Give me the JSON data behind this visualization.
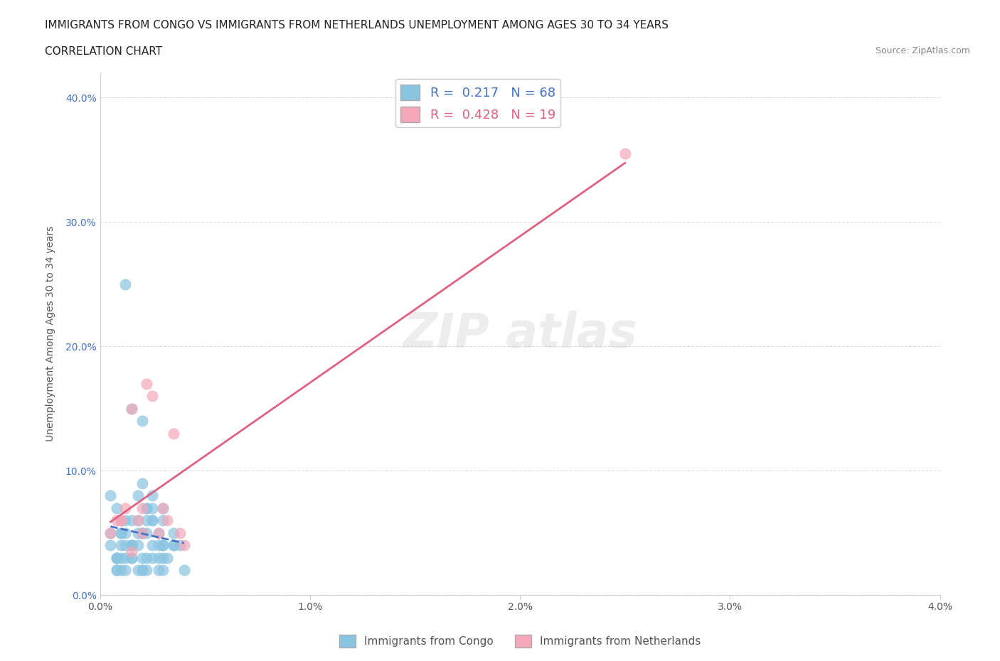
{
  "title_line1": "IMMIGRANTS FROM CONGO VS IMMIGRANTS FROM NETHERLANDS UNEMPLOYMENT AMONG AGES 30 TO 34 YEARS",
  "title_line2": "CORRELATION CHART",
  "source_text": "Source: ZipAtlas.com",
  "xlabel": "",
  "ylabel": "Unemployment Among Ages 30 to 34 years",
  "xlim": [
    0.0,
    0.04
  ],
  "ylim": [
    0.0,
    0.42
  ],
  "yticks": [
    0.0,
    0.1,
    0.2,
    0.3,
    0.4
  ],
  "ytick_labels": [
    "0.0%",
    "10.0%",
    "20.0%",
    "30.0%",
    "40.0%"
  ],
  "xticks": [
    0.0,
    0.01,
    0.02,
    0.03,
    0.04
  ],
  "xtick_labels": [
    "0.0%",
    "1.0%",
    "2.0%",
    "3.0%",
    "4.0%"
  ],
  "legend_r1": "R =  0.217   N = 68",
  "legend_r2": "R =  0.428   N = 19",
  "color_congo": "#89C4E1",
  "color_netherlands": "#F4A7B9",
  "trend_color_congo": "#4472C4",
  "trend_color_netherlands": "#E06080",
  "watermark": "ZIPatlas",
  "legend_label1": "Immigrants from Congo",
  "legend_label2": "Immigrants from Netherlands",
  "congo_x": [
    0.001,
    0.0005,
    0.001,
    0.002,
    0.0008,
    0.0015,
    0.0005,
    0.001,
    0.0012,
    0.0018,
    0.0022,
    0.0008,
    0.0015,
    0.002,
    0.0025,
    0.003,
    0.0018,
    0.0012,
    0.0008,
    0.0005,
    0.0015,
    0.002,
    0.0025,
    0.003,
    0.0035,
    0.001,
    0.0012,
    0.0018,
    0.0022,
    0.0028,
    0.0008,
    0.0015,
    0.002,
    0.0025,
    0.003,
    0.0035,
    0.004,
    0.001,
    0.0012,
    0.0018,
    0.0022,
    0.0028,
    0.0032,
    0.0038,
    0.002,
    0.0025,
    0.003,
    0.0012,
    0.0018,
    0.0022,
    0.0008,
    0.0015,
    0.002,
    0.0025,
    0.003,
    0.0035,
    0.0008,
    0.0015,
    0.0022,
    0.0028,
    0.0012,
    0.0022,
    0.001,
    0.003,
    0.0025,
    0.002,
    0.0015,
    0.0028
  ],
  "congo_y": [
    0.06,
    0.05,
    0.04,
    0.03,
    0.07,
    0.06,
    0.08,
    0.05,
    0.06,
    0.04,
    0.05,
    0.03,
    0.04,
    0.05,
    0.07,
    0.06,
    0.08,
    0.02,
    0.03,
    0.04,
    0.15,
    0.14,
    0.08,
    0.03,
    0.04,
    0.02,
    0.05,
    0.06,
    0.07,
    0.05,
    0.03,
    0.04,
    0.02,
    0.03,
    0.04,
    0.05,
    0.02,
    0.03,
    0.04,
    0.05,
    0.06,
    0.02,
    0.03,
    0.04,
    0.09,
    0.06,
    0.04,
    0.03,
    0.02,
    0.03,
    0.02,
    0.04,
    0.05,
    0.06,
    0.07,
    0.04,
    0.02,
    0.03,
    0.02,
    0.03,
    0.25,
    0.07,
    0.05,
    0.02,
    0.04,
    0.02,
    0.03,
    0.04
  ],
  "neth_x": [
    0.0005,
    0.001,
    0.0015,
    0.002,
    0.0025,
    0.003,
    0.0035,
    0.004,
    0.0008,
    0.0012,
    0.0018,
    0.0022,
    0.0028,
    0.0032,
    0.0038,
    0.001,
    0.0015,
    0.002,
    0.025
  ],
  "neth_y": [
    0.05,
    0.06,
    0.15,
    0.07,
    0.16,
    0.07,
    0.13,
    0.04,
    0.06,
    0.07,
    0.06,
    0.17,
    0.05,
    0.06,
    0.05,
    0.06,
    0.035,
    0.05,
    0.355
  ]
}
